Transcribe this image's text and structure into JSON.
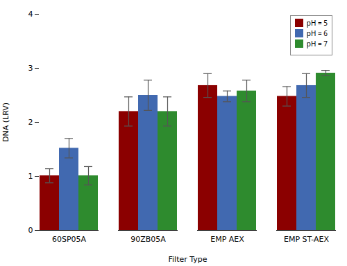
{
  "chart_data": {
    "type": "bar",
    "xlabel": "Filter Type",
    "ylabel": "DNA (LRV)",
    "categories": [
      "60SP05A",
      "90ZB05A",
      "EMP AEX",
      "EMP ST-AEX"
    ],
    "series": [
      {
        "name": "pH = 5",
        "color": "#8B0000",
        "values": [
          1.01,
          2.2,
          2.68,
          2.48
        ],
        "errors": [
          0.13,
          0.27,
          0.22,
          0.18
        ]
      },
      {
        "name": "pH = 6",
        "color": "#4169B0",
        "values": [
          1.52,
          2.5,
          2.48,
          2.68
        ],
        "errors": [
          0.18,
          0.28,
          0.1,
          0.22
        ]
      },
      {
        "name": "pH = 7",
        "color": "#2E8B2E",
        "values": [
          1.01,
          2.2,
          2.58,
          2.91
        ],
        "errors": [
          0.17,
          0.27,
          0.2,
          0.05
        ]
      }
    ],
    "ylim": [
      0,
      4
    ],
    "yticks": [
      0,
      1,
      2,
      3,
      4
    ],
    "grid": false,
    "legend": "upper right"
  }
}
